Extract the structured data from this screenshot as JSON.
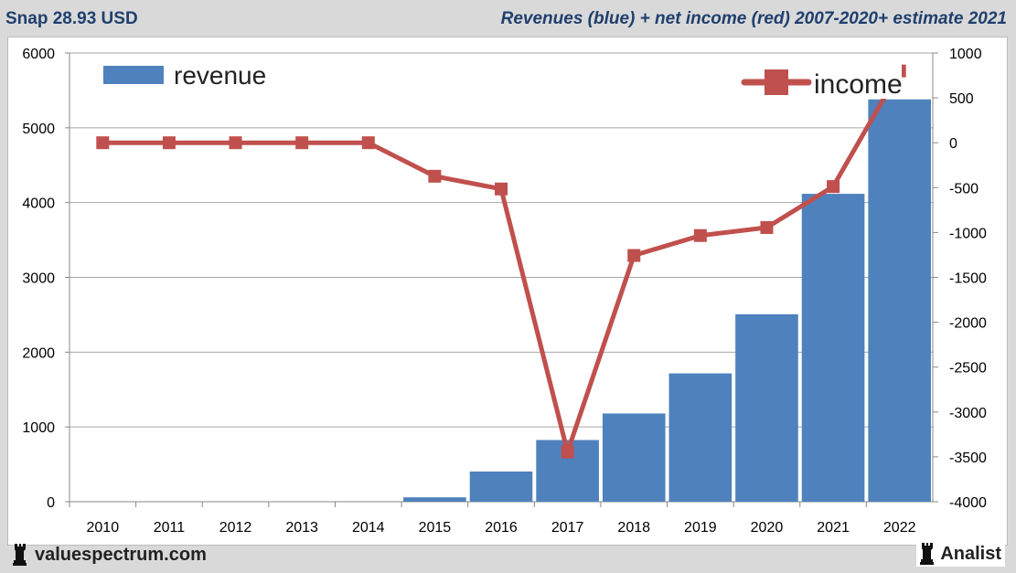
{
  "header": {
    "left": "Snap 28.93 USD",
    "right": "Revenues (blue) + net income (red) 2007-2020+ estimate 2021"
  },
  "footer": {
    "left": "valuespectrum.com",
    "right": "Analist"
  },
  "chart_data": {
    "type": "bar+line",
    "title": "Revenues (blue) + net income (red) 2007-2020+ estimate 2021",
    "categories": [
      "2010",
      "2011",
      "2012",
      "2013",
      "2014",
      "2015",
      "2016",
      "2017",
      "2018",
      "2019",
      "2020",
      "2021",
      "2022"
    ],
    "series": [
      {
        "name": "revenue",
        "type": "bar",
        "axis": "left",
        "color": "#4f81bd",
        "values": [
          0,
          0,
          0,
          0,
          0,
          59,
          404,
          825,
          1180,
          1716,
          2507,
          4117,
          5380
        ]
      },
      {
        "name": "income",
        "type": "line",
        "axis": "right",
        "color": "#c0504d",
        "values": [
          0,
          0,
          0,
          0,
          0,
          -373,
          -515,
          -3445,
          -1256,
          -1034,
          -945,
          -488,
          800
        ]
      }
    ],
    "left_axis": {
      "ylim": [
        0,
        6000
      ],
      "ticks": [
        "0",
        "1000",
        "2000",
        "3000",
        "4000",
        "5000",
        "6000"
      ]
    },
    "right_axis": {
      "ylim": [
        -4000,
        1000
      ],
      "ticks": [
        "-4000",
        "-3500",
        "-3000",
        "-2500",
        "-2000",
        "-1500",
        "-1000",
        "-500",
        "0",
        "500",
        "1000"
      ]
    },
    "grid": true,
    "legend": [
      {
        "label": "revenue",
        "placement": "top-left"
      },
      {
        "label": "income",
        "placement": "top-right"
      }
    ]
  }
}
